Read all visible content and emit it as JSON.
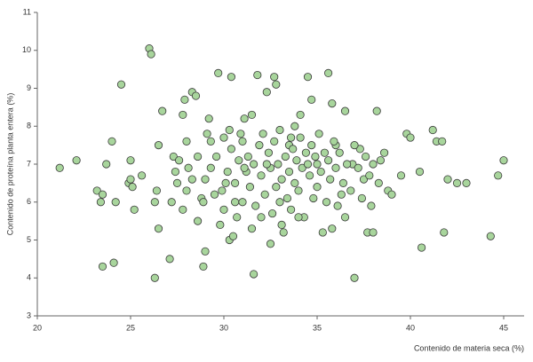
{
  "chart_data": {
    "type": "scatter",
    "x_label": "Contenido de materia seca  (%)",
    "y_label": "Contenido de proteína planta entera (%)",
    "color": "#a8d59c",
    "edge_color": "#3a3a3a",
    "xlim": [
      20,
      46
    ],
    "xticks": [
      20,
      25,
      30,
      35,
      40,
      45
    ],
    "ylim": [
      3,
      11
    ],
    "yticks": [
      3,
      4,
      5,
      6,
      7,
      8,
      9,
      10,
      11
    ],
    "x": [
      21.2,
      22.1,
      23.2,
      23.4,
      23.5,
      23.5,
      23.7,
      24.0,
      24.1,
      24.2,
      24.5,
      24.9,
      25.0,
      25.0,
      25.1,
      25.2,
      25.6,
      26.0,
      26.1,
      26.3,
      26.3,
      26.4,
      26.5,
      26.5,
      26.7,
      27.1,
      27.2,
      27.3,
      27.5,
      27.6,
      27.8,
      27.9,
      28.0,
      28.1,
      28.3,
      28.5,
      28.6,
      28.8,
      28.9,
      29.0,
      29.2,
      29.3,
      29.5,
      29.7,
      29.8,
      30.1,
      30.3,
      30.4,
      30.5,
      30.6,
      30.9,
      31.1,
      31.2,
      31.5,
      31.6,
      31.8,
      32.0,
      32.3,
      32.5,
      32.7,
      32.8,
      33.0,
      33.2,
      33.5,
      33.8,
      34.1,
      34.5,
      34.7,
      35.0,
      35.3,
      35.6,
      35.8,
      36.0,
      36.3,
      36.5,
      36.9,
      37.0,
      37.3,
      37.5,
      37.7,
      37.9,
      38.0,
      38.2,
      38.4,
      38.8,
      39.0,
      39.5,
      39.8,
      40.0,
      40.5,
      40.6,
      41.2,
      41.4,
      41.7,
      41.8,
      42.0,
      42.5,
      43.0,
      44.3,
      44.7,
      45.0,
      29.0,
      29.3,
      29.6,
      29.9,
      30.0,
      30.2,
      30.4,
      30.6,
      30.8,
      31.0,
      31.0,
      31.3,
      31.4,
      31.6,
      31.7,
      31.9,
      32.0,
      32.1,
      32.2,
      32.4,
      32.5,
      32.6,
      32.7,
      32.8,
      32.9,
      33.0,
      33.1,
      33.3,
      33.4,
      33.5,
      33.6,
      33.7,
      33.8,
      33.9,
      34.0,
      34.1,
      34.2,
      34.3,
      34.4,
      34.6,
      34.7,
      34.8,
      34.9,
      35.0,
      35.1,
      35.2,
      35.4,
      35.5,
      35.6,
      35.7,
      35.9,
      36.0,
      36.1,
      36.2,
      36.4,
      36.6,
      36.8,
      37.0,
      37.2,
      37.4,
      37.6,
      37.8,
      38.0,
      38.3,
      38.6,
      28.0,
      28.3,
      28.6,
      28.9,
      27.8,
      27.4,
      30.0,
      30.7,
      31.5,
      33.1,
      34.0,
      35.8,
      36.5,
      32.3,
      33.6,
      34.5,
      31.1,
      30.3,
      29.1
    ],
    "values": [
      6.9,
      7.1,
      6.3,
      6.0,
      6.2,
      4.3,
      7.0,
      7.6,
      4.4,
      6.0,
      9.1,
      6.5,
      6.6,
      7.1,
      6.4,
      5.8,
      6.7,
      10.05,
      9.9,
      6.0,
      4.0,
      6.3,
      5.3,
      7.5,
      8.4,
      4.5,
      6.0,
      7.2,
      6.5,
      7.1,
      8.3,
      8.7,
      7.6,
      6.9,
      8.9,
      8.8,
      5.5,
      6.1,
      4.3,
      4.7,
      8.2,
      7.6,
      6.2,
      9.4,
      5.4,
      6.5,
      5.0,
      9.3,
      5.1,
      6.0,
      7.8,
      8.2,
      6.8,
      8.3,
      4.1,
      9.35,
      5.6,
      8.9,
      4.9,
      9.3,
      9.1,
      6.0,
      5.2,
      7.5,
      8.0,
      8.3,
      9.3,
      8.7,
      7.0,
      5.2,
      9.4,
      8.6,
      7.5,
      6.2,
      8.4,
      7.0,
      4.0,
      7.4,
      6.6,
      5.2,
      5.9,
      5.2,
      8.4,
      7.1,
      6.3,
      6.2,
      6.7,
      7.8,
      7.7,
      6.8,
      4.8,
      7.9,
      7.6,
      7.6,
      5.2,
      6.6,
      6.5,
      6.5,
      5.1,
      6.7,
      7.1,
      6.6,
      6.9,
      7.2,
      6.3,
      7.7,
      6.8,
      7.4,
      6.5,
      7.1,
      6.0,
      7.6,
      7.2,
      6.4,
      7.0,
      5.9,
      7.5,
      6.7,
      7.8,
      6.2,
      7.3,
      6.9,
      5.7,
      7.6,
      6.4,
      7.0,
      7.9,
      6.6,
      7.2,
      6.1,
      6.8,
      5.8,
      7.4,
      6.5,
      7.1,
      6.3,
      7.7,
      6.9,
      5.6,
      7.3,
      6.7,
      7.5,
      6.1,
      7.2,
      6.4,
      7.8,
      6.8,
      7.3,
      6.0,
      7.1,
      6.6,
      7.6,
      6.9,
      5.9,
      7.3,
      6.5,
      7.0,
      6.3,
      7.5,
      6.9,
      6.1,
      7.2,
      6.7,
      7.0,
      6.5,
      7.3,
      6.3,
      6.6,
      7.2,
      6.0,
      5.8,
      6.8,
      5.8,
      5.6,
      5.3,
      5.4,
      5.6,
      5.3,
      5.6,
      7.0,
      7.7,
      7.0,
      6.9,
      7.9,
      7.8
    ]
  }
}
